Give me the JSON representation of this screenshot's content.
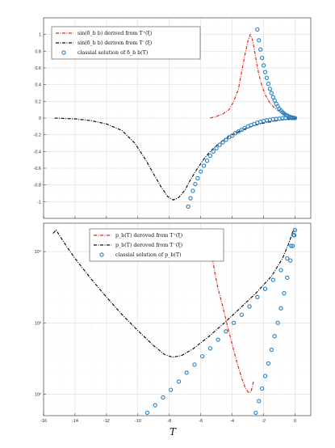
{
  "chart_data": [
    {
      "type": "line",
      "panel": "top",
      "xlim": [
        -16,
        1
      ],
      "ylim": [
        -1.2,
        1.2
      ],
      "y_scale": "linear",
      "grid": true,
      "legend_position": "top-left",
      "x_ticks": [
        -16,
        -14,
        -12,
        -10,
        -8,
        -6,
        -4,
        -2,
        0
      ],
      "x_tick_labels": [
        "",
        "",
        "",
        "",
        "",
        "",
        "",
        "",
        ""
      ],
      "y_ticks": [
        -1,
        -0.8,
        -0.6,
        -0.4,
        -0.2,
        0,
        0.2,
        0.4,
        0.6,
        0.8,
        1
      ],
      "y_tick_labels": [
        "-1",
        "-0.8",
        "-0.6",
        "-0.4",
        "-0.2",
        "0",
        "0.2",
        "0.4",
        "0.6",
        "0.8",
        "1"
      ],
      "series": [
        {
          "name": "sin(δ_b b) derived from T⁺(ξ)",
          "style": "dashdot",
          "color": "#e8231c",
          "points": [
            [
              -5.4,
              0.0
            ],
            [
              -5.0,
              0.02
            ],
            [
              -4.6,
              0.05
            ],
            [
              -4.2,
              0.1
            ],
            [
              -3.9,
              0.2
            ],
            [
              -3.6,
              0.35
            ],
            [
              -3.4,
              0.55
            ],
            [
              -3.2,
              0.75
            ],
            [
              -3.0,
              0.92
            ],
            [
              -2.85,
              1.0
            ],
            [
              -2.7,
              0.93
            ],
            [
              -2.5,
              0.72
            ],
            [
              -2.3,
              0.52
            ],
            [
              -2.1,
              0.38
            ],
            [
              -1.9,
              0.28
            ],
            [
              -1.6,
              0.18
            ],
            [
              -1.3,
              0.12
            ],
            [
              -1.0,
              0.08
            ],
            [
              -0.7,
              0.05
            ],
            [
              -0.4,
              0.03
            ],
            [
              -0.1,
              0.01
            ],
            [
              0.1,
              0.0
            ]
          ]
        },
        {
          "name": "sin(δ_b b) deriven from T⁻(ξ)",
          "style": "dashdot",
          "color": "#111111",
          "points": [
            [
              -15.3,
              0.0
            ],
            [
              -14.0,
              -0.01
            ],
            [
              -13.0,
              -0.03
            ],
            [
              -12.0,
              -0.07
            ],
            [
              -11.0,
              -0.15
            ],
            [
              -10.2,
              -0.3
            ],
            [
              -9.5,
              -0.5
            ],
            [
              -9.0,
              -0.67
            ],
            [
              -8.5,
              -0.83
            ],
            [
              -8.1,
              -0.94
            ],
            [
              -7.75,
              -0.98
            ],
            [
              -7.4,
              -0.95
            ],
            [
              -7.0,
              -0.86
            ],
            [
              -6.6,
              -0.72
            ],
            [
              -6.2,
              -0.6
            ],
            [
              -5.8,
              -0.49
            ],
            [
              -5.4,
              -0.4
            ],
            [
              -5.0,
              -0.33
            ],
            [
              -4.6,
              -0.27
            ],
            [
              -4.2,
              -0.22
            ],
            [
              -3.8,
              -0.18
            ],
            [
              -3.2,
              -0.13
            ],
            [
              -2.6,
              -0.09
            ],
            [
              -2.0,
              -0.06
            ],
            [
              -1.4,
              -0.04
            ],
            [
              -0.8,
              -0.02
            ],
            [
              -0.3,
              -0.01
            ],
            [
              0.0,
              0.0
            ]
          ]
        },
        {
          "name": "classial solution of δ_b b(T)",
          "style": "markers",
          "color": "#2a7fc1",
          "points": [
            [
              -6.8,
              -1.06
            ],
            [
              -6.65,
              -0.96
            ],
            [
              -6.5,
              -0.87
            ],
            [
              -6.35,
              -0.79
            ],
            [
              -6.2,
              -0.72
            ],
            [
              -6.0,
              -0.64
            ],
            [
              -5.8,
              -0.57
            ],
            [
              -5.6,
              -0.51
            ],
            [
              -5.4,
              -0.45
            ],
            [
              -5.2,
              -0.4
            ],
            [
              -5.0,
              -0.36
            ],
            [
              -4.8,
              -0.32
            ],
            [
              -4.6,
              -0.29
            ],
            [
              -4.4,
              -0.26
            ],
            [
              -4.2,
              -0.23
            ],
            [
              -4.0,
              -0.21
            ],
            [
              -3.8,
              -0.18
            ],
            [
              -3.6,
              -0.16
            ],
            [
              -3.4,
              -0.14
            ],
            [
              -3.2,
              -0.12
            ],
            [
              -3.0,
              -0.1
            ],
            [
              -2.8,
              -0.085
            ],
            [
              -2.6,
              -0.07
            ],
            [
              -2.4,
              -0.055
            ],
            [
              -2.2,
              -0.045
            ],
            [
              -2.0,
              -0.035
            ],
            [
              -1.8,
              -0.027
            ],
            [
              -1.6,
              -0.02
            ],
            [
              -1.4,
              -0.014
            ],
            [
              -1.2,
              -0.01
            ],
            [
              -1.0,
              -0.006
            ],
            [
              -0.8,
              -0.003
            ],
            [
              -0.6,
              -0.001
            ],
            [
              -0.4,
              0.0
            ],
            [
              -0.2,
              0.0
            ],
            [
              -0.05,
              0.0
            ],
            [
              -2.4,
              1.06
            ],
            [
              -2.3,
              0.93
            ],
            [
              -2.2,
              0.82
            ],
            [
              -2.1,
              0.72
            ],
            [
              -2.0,
              0.63
            ],
            [
              -1.9,
              0.55
            ],
            [
              -1.8,
              0.48
            ],
            [
              -1.7,
              0.41
            ],
            [
              -1.6,
              0.35
            ],
            [
              -1.5,
              0.3
            ],
            [
              -1.4,
              0.25
            ],
            [
              -1.3,
              0.21
            ],
            [
              -1.2,
              0.17
            ],
            [
              -1.1,
              0.14
            ],
            [
              -1.0,
              0.11
            ],
            [
              -0.9,
              0.09
            ],
            [
              -0.8,
              0.07
            ],
            [
              -0.7,
              0.055
            ],
            [
              -0.6,
              0.04
            ],
            [
              -0.5,
              0.03
            ],
            [
              -0.4,
              0.02
            ],
            [
              -0.3,
              0.013
            ],
            [
              -0.2,
              0.007
            ],
            [
              -0.1,
              0.003
            ],
            [
              0.0,
              0.0
            ]
          ]
        }
      ]
    },
    {
      "type": "line",
      "panel": "bottom",
      "xlim": [
        -16,
        1
      ],
      "ylim": [
        50,
        25000
      ],
      "y_scale": "log",
      "grid": true,
      "legend_position": "top-center",
      "xlabel": "T",
      "x_ticks": [
        -16,
        -14,
        -12,
        -10,
        -8,
        -6,
        -4,
        -2,
        0
      ],
      "x_tick_labels": [
        "-16",
        "-14",
        "-12",
        "-10",
        "-8",
        "-6",
        "-4",
        "-2",
        "0"
      ],
      "y_ticks": [
        100,
        1000,
        10000
      ],
      "y_tick_labels": [
        "10²",
        "10³",
        "10⁴"
      ],
      "series": [
        {
          "name": "p_b(T) deroved from T⁺(ξ)",
          "style": "dashdot",
          "color": "#e8231c",
          "points": [
            [
              -5.5,
              18000
            ],
            [
              -5.3,
              9000
            ],
            [
              -5.1,
              5000
            ],
            [
              -4.9,
              3000
            ],
            [
              -4.6,
              1700
            ],
            [
              -4.3,
              900
            ],
            [
              -4.0,
              500
            ],
            [
              -3.7,
              280
            ],
            [
              -3.4,
              170
            ],
            [
              -3.15,
              120
            ],
            [
              -2.95,
              105
            ],
            [
              -2.8,
              108
            ],
            [
              -2.65,
              150
            ]
          ]
        },
        {
          "name": "p_b(T) deroved from T⁻(ξ)",
          "style": "dashdot",
          "color": "#111111",
          "points": [
            [
              -15.4,
              18000
            ],
            [
              -15.2,
              20000
            ],
            [
              -15.0,
              17000
            ],
            [
              -14.5,
              11500
            ],
            [
              -14.0,
              8000
            ],
            [
              -13.0,
              4200
            ],
            [
              -12.0,
              2300
            ],
            [
              -11.0,
              1300
            ],
            [
              -10.0,
              780
            ],
            [
              -9.0,
              480
            ],
            [
              -8.3,
              360
            ],
            [
              -7.8,
              330
            ],
            [
              -7.2,
              350
            ],
            [
              -6.5,
              430
            ],
            [
              -5.5,
              640
            ],
            [
              -4.5,
              1000
            ],
            [
              -3.5,
              1600
            ],
            [
              -2.5,
              2600
            ],
            [
              -1.5,
              4500
            ],
            [
              -0.8,
              8000
            ],
            [
              -0.4,
              13000
            ],
            [
              -0.15,
              19000
            ],
            [
              0.0,
              20000
            ]
          ]
        },
        {
          "name": "classial solution of p_b(T)",
          "style": "markers",
          "color": "#2a7fc1",
          "points": [
            [
              -9.4,
              55
            ],
            [
              -8.9,
              70
            ],
            [
              -8.4,
              90
            ],
            [
              -7.9,
              115
            ],
            [
              -7.4,
              150
            ],
            [
              -6.9,
              200
            ],
            [
              -6.4,
              260
            ],
            [
              -5.9,
              340
            ],
            [
              -5.4,
              440
            ],
            [
              -4.9,
              580
            ],
            [
              -4.4,
              760
            ],
            [
              -3.9,
              1000
            ],
            [
              -3.4,
              1300
            ],
            [
              -2.9,
              1700
            ],
            [
              -2.4,
              2300
            ],
            [
              -1.9,
              3000
            ],
            [
              -1.4,
              4000
            ],
            [
              -0.9,
              5500
            ],
            [
              -0.5,
              8000
            ],
            [
              -0.25,
              12000
            ],
            [
              -0.1,
              17000
            ],
            [
              0.0,
              20000
            ],
            [
              -2.5,
              55
            ],
            [
              -2.3,
              80
            ],
            [
              -2.1,
              120
            ],
            [
              -1.9,
              180
            ],
            [
              -1.7,
              270
            ],
            [
              -1.5,
              420
            ],
            [
              -1.3,
              650
            ],
            [
              -1.1,
              1000
            ],
            [
              -0.9,
              1600
            ],
            [
              -0.7,
              2600
            ],
            [
              -0.5,
              4300
            ],
            [
              -0.3,
              7500
            ],
            [
              -0.15,
              12000
            ],
            [
              -0.05,
              17000
            ]
          ]
        }
      ]
    }
  ]
}
